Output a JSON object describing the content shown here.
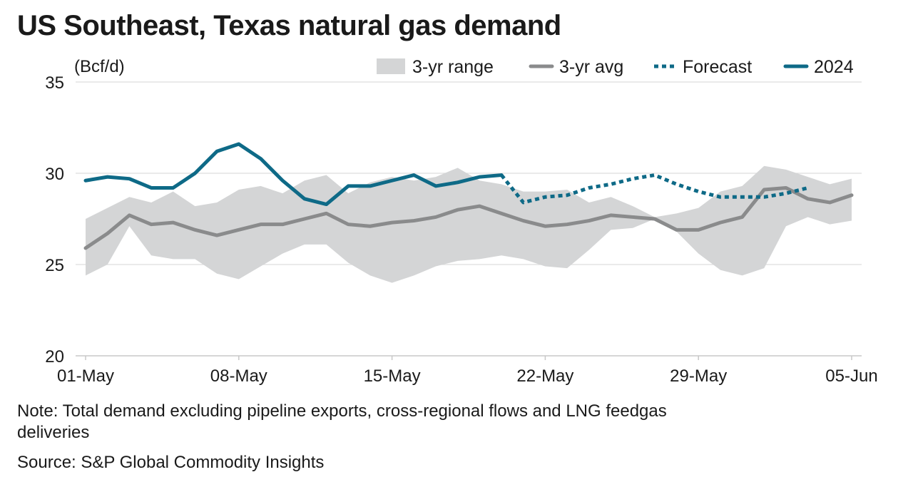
{
  "title": "US Southeast, Texas natural gas demand",
  "note": "Note: Total demand excluding pipeline exports, cross-regional flows and LNG feedgas deliveries",
  "source": "Source: S&P Global Commodity Insights",
  "colors": {
    "range": "#d4d5d6",
    "avg": "#8a8b8c",
    "forecast": "#0e6a87",
    "y2024": "#0e6a87",
    "grid": "#dddddd"
  },
  "chart_data": {
    "type": "line",
    "title": "US Southeast, Texas natural gas demand",
    "ylabel": "(Bcf/d)",
    "xlabel": "",
    "ylim": [
      20,
      35
    ],
    "yticks": [
      20,
      25,
      30,
      35
    ],
    "xlim": [
      "01-May",
      "05-Jun"
    ],
    "x_tick_labels": [
      "01-May",
      "08-May",
      "15-May",
      "22-May",
      "29-May",
      "05-Jun"
    ],
    "x_tick_days": [
      0,
      7,
      14,
      21,
      28,
      35
    ],
    "grid": "horizontal",
    "legend_placement": "top-right",
    "legend": [
      "3-yr range",
      "3-yr avg",
      "Forecast",
      "2024"
    ],
    "series": [
      {
        "name": "3-yr range",
        "kind": "band",
        "x": [
          0,
          1,
          2,
          3,
          4,
          5,
          6,
          7,
          8,
          9,
          10,
          11,
          12,
          13,
          14,
          15,
          16,
          17,
          18,
          19,
          20,
          21,
          22,
          23,
          24,
          25,
          26,
          27,
          28,
          29,
          30,
          31,
          32,
          33,
          34,
          35
        ],
        "high": [
          27.5,
          28.1,
          28.7,
          28.4,
          29.0,
          28.2,
          28.4,
          29.1,
          29.3,
          28.9,
          29.6,
          29.9,
          28.9,
          29.5,
          29.8,
          29.6,
          29.8,
          30.3,
          29.6,
          29.4,
          29.0,
          29.0,
          29.1,
          28.4,
          28.7,
          28.2,
          27.6,
          27.8,
          28.1,
          29.0,
          29.3,
          30.4,
          30.2,
          29.8,
          29.4,
          29.7
        ],
        "low": [
          24.4,
          25.0,
          27.1,
          25.5,
          25.3,
          25.3,
          24.5,
          24.2,
          24.9,
          25.6,
          26.1,
          26.1,
          25.1,
          24.4,
          24.0,
          24.4,
          24.9,
          25.2,
          25.3,
          25.5,
          25.3,
          24.9,
          24.8,
          25.8,
          26.9,
          27.0,
          27.5,
          26.8,
          25.6,
          24.7,
          24.4,
          24.8,
          27.1,
          27.6,
          27.2,
          27.4
        ]
      },
      {
        "name": "3-yr avg",
        "x": [
          0,
          1,
          2,
          3,
          4,
          5,
          6,
          7,
          8,
          9,
          10,
          11,
          12,
          13,
          14,
          15,
          16,
          17,
          18,
          19,
          20,
          21,
          22,
          23,
          24,
          25,
          26,
          27,
          28,
          29,
          30,
          31,
          32,
          33,
          34,
          35
        ],
        "values": [
          25.9,
          26.7,
          27.7,
          27.2,
          27.3,
          26.9,
          26.6,
          26.9,
          27.2,
          27.2,
          27.5,
          27.8,
          27.2,
          27.1,
          27.3,
          27.4,
          27.6,
          28.0,
          28.2,
          27.8,
          27.4,
          27.1,
          27.2,
          27.4,
          27.7,
          27.6,
          27.5,
          26.9,
          26.9,
          27.3,
          27.6,
          29.1,
          29.2,
          28.6,
          28.4,
          28.8
        ]
      },
      {
        "name": "2024",
        "x": [
          0,
          1,
          2,
          3,
          4,
          5,
          6,
          7,
          8,
          9,
          10,
          11,
          12,
          13,
          14,
          15,
          16,
          17,
          18,
          19
        ],
        "values": [
          29.6,
          29.8,
          29.7,
          29.2,
          29.2,
          30.0,
          31.2,
          31.6,
          30.8,
          29.6,
          28.6,
          28.3,
          29.3,
          29.3,
          29.6,
          29.9,
          29.3,
          29.5,
          29.8,
          29.9
        ]
      },
      {
        "name": "Forecast",
        "x": [
          19,
          20,
          21,
          22,
          23,
          24,
          25,
          26,
          27,
          28,
          29,
          30,
          31,
          32,
          33
        ],
        "values": [
          29.9,
          28.4,
          28.7,
          28.8,
          29.2,
          29.4,
          29.7,
          29.9,
          29.4,
          29.0,
          28.7,
          28.7,
          28.7,
          28.9,
          29.2
        ]
      }
    ]
  }
}
